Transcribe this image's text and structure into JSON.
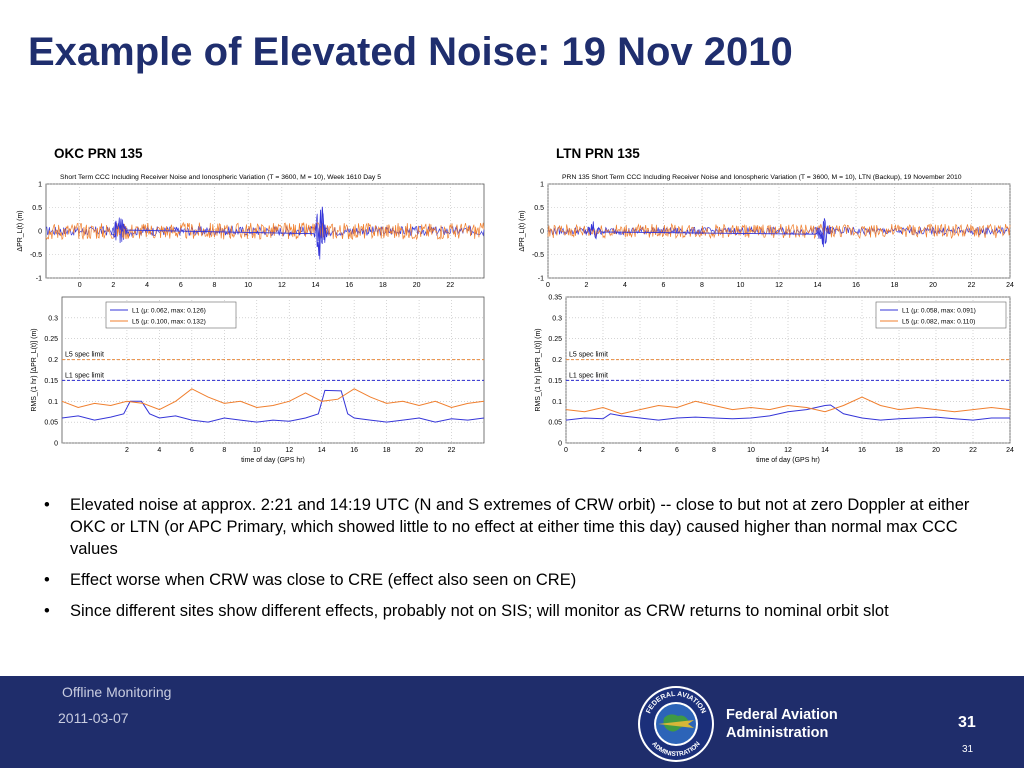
{
  "slide": {
    "title": "Example of Elevated Noise: 19 Nov 2010",
    "left_panel_label": "OKC PRN 135",
    "right_panel_label": "LTN PRN 135",
    "bullets": [
      "Elevated noise at approx. 2:21 and 14:19 UTC (N and S extremes of CRW orbit) -- close to but not at zero Doppler at either OKC or LTN (or APC Primary, which showed little to no effect at either time this day) caused higher than normal max CCC values",
      "Effect worse when CRW was close to CRE (effect also seen on CRE)",
      "Since different sites show different effects, probably not on SIS; will monitor as CRW returns to nominal orbit slot"
    ]
  },
  "footer": {
    "section": "Offline Monitoring",
    "date": "2011-03-07",
    "org_line1": "Federal Aviation",
    "org_line2": "Administration",
    "page_big": "31",
    "page_small": "31",
    "seal_top_text": "FEDERAL AVIATION",
    "seal_bottom_text": "ADMINISTRATION"
  },
  "colors": {
    "title": "#1f2e6e",
    "footer_bg": "#1f2d6b",
    "l1": "#3535d8",
    "l5": "#f07f2e",
    "l1_limit": "#2a2ad0",
    "l5_limit": "#e98a3c"
  },
  "chart_data": [
    {
      "id": "okc-top",
      "type": "line",
      "title": "Short Term CCC Including Receiver Noise and Ionospheric Variation (T = 3600, M = 10), Week 1610 Day 5",
      "ylabel": "ΔPR_L(t) (m)",
      "xlabel": "",
      "xlim": [
        -2,
        24
      ],
      "ylim": [
        -1,
        1
      ],
      "xticks": [
        0,
        2,
        4,
        6,
        8,
        10,
        12,
        14,
        16,
        18,
        20,
        22
      ],
      "yticks": [
        -1,
        -0.5,
        0,
        0.5,
        1
      ],
      "grid": true,
      "series": [
        {
          "name": "L1",
          "color": "#3535d8",
          "noise_amplitude": 0.1,
          "spikes": [
            {
              "x": 2.35,
              "amp": 0.45
            },
            {
              "x": 14.3,
              "amp": 0.7
            }
          ]
        },
        {
          "name": "L5",
          "color": "#f07f2e",
          "noise_amplitude": 0.18,
          "spikes": []
        }
      ]
    },
    {
      "id": "okc-bottom",
      "type": "line",
      "title": "",
      "ylabel": "RMS_(1 hr) [ΔPR_L(t)] (m)",
      "xlabel": "time of day (GPS hr)",
      "xlim": [
        -2,
        24
      ],
      "ylim": [
        0,
        0.35
      ],
      "xticks": [
        2,
        4,
        6,
        8,
        10,
        12,
        14,
        16,
        18,
        20,
        22
      ],
      "yticks": [
        0,
        0.05,
        0.1,
        0.15,
        0.2,
        0.25,
        0.3
      ],
      "grid": true,
      "legend": {
        "placement": "top-left",
        "entries": [
          "L1 (μ: 0.062, max: 0.126)",
          "L5 (μ: 0.100, max: 0.132)"
        ]
      },
      "annotations": [
        {
          "text": "L5 spec limit",
          "y": 0.2
        },
        {
          "text": "L1 spec limit",
          "y": 0.15
        }
      ],
      "spec_limits": {
        "L5": 0.2,
        "L1": 0.15
      },
      "series": [
        {
          "name": "L1",
          "color": "#3535d8",
          "x": [
            -2,
            -1,
            0,
            1,
            1.8,
            2.2,
            2.9,
            3.4,
            4,
            5,
            6,
            7,
            8,
            9,
            10,
            11,
            12,
            13,
            13.8,
            14.2,
            15.2,
            15.6,
            16,
            17,
            18,
            19,
            20,
            21,
            22,
            23,
            24
          ],
          "y": [
            0.06,
            0.065,
            0.055,
            0.062,
            0.07,
            0.1,
            0.1,
            0.07,
            0.06,
            0.065,
            0.055,
            0.05,
            0.06,
            0.055,
            0.05,
            0.055,
            0.052,
            0.06,
            0.07,
            0.126,
            0.125,
            0.07,
            0.06,
            0.055,
            0.05,
            0.055,
            0.06,
            0.05,
            0.058,
            0.055,
            0.06
          ]
        },
        {
          "name": "L5",
          "color": "#f07f2e",
          "x": [
            -2,
            -1,
            0,
            1,
            2,
            3,
            4,
            5,
            6,
            7,
            8,
            9,
            10,
            11,
            12,
            13,
            14,
            15,
            16,
            17,
            18,
            19,
            20,
            21,
            22,
            23,
            24
          ],
          "y": [
            0.1,
            0.085,
            0.095,
            0.09,
            0.1,
            0.095,
            0.08,
            0.1,
            0.13,
            0.11,
            0.095,
            0.1,
            0.085,
            0.09,
            0.1,
            0.12,
            0.1,
            0.105,
            0.13,
            0.11,
            0.095,
            0.1,
            0.09,
            0.1,
            0.085,
            0.095,
            0.1
          ]
        }
      ]
    },
    {
      "id": "ltn-top",
      "type": "line",
      "title": "PRN 135 Short Term CCC Including Receiver Noise and Ionospheric Variation (T = 3600, M = 10), LTN (Backup), 19 November 2010",
      "ylabel": "ΔPR_L(t) (m)",
      "xlabel": "",
      "xlim": [
        0,
        24
      ],
      "ylim": [
        -1,
        1
      ],
      "xticks": [
        0,
        2,
        4,
        6,
        8,
        10,
        12,
        14,
        16,
        18,
        20,
        22,
        24
      ],
      "yticks": [
        -1,
        -0.5,
        0,
        0.5,
        1
      ],
      "grid": true,
      "series": [
        {
          "name": "L1",
          "color": "#3535d8",
          "noise_amplitude": 0.08,
          "spikes": [
            {
              "x": 2.35,
              "amp": 0.25
            },
            {
              "x": 14.3,
              "amp": 0.35
            }
          ]
        },
        {
          "name": "L5",
          "color": "#f07f2e",
          "noise_amplitude": 0.15,
          "spikes": []
        }
      ]
    },
    {
      "id": "ltn-bottom",
      "type": "line",
      "title": "",
      "ylabel": "RMS_(1 hr) [ΔPR_L(t)] (m)",
      "xlabel": "time of day (GPS hr)",
      "xlim": [
        0,
        24
      ],
      "ylim": [
        0,
        0.35
      ],
      "xticks": [
        0,
        2,
        4,
        6,
        8,
        10,
        12,
        14,
        16,
        18,
        20,
        22,
        24
      ],
      "yticks": [
        0,
        0.05,
        0.1,
        0.15,
        0.2,
        0.25,
        0.3,
        0.35
      ],
      "grid": true,
      "legend": {
        "placement": "top-right",
        "entries": [
          "L1 (μ: 0.058, max: 0.091)",
          "L5 (μ: 0.082, max: 0.110)"
        ]
      },
      "annotations": [
        {
          "text": "L5 spec limit",
          "y": 0.2
        },
        {
          "text": "L1 spec limit",
          "y": 0.15
        }
      ],
      "spec_limits": {
        "L5": 0.2,
        "L1": 0.15
      },
      "series": [
        {
          "name": "L1",
          "color": "#3535d8",
          "x": [
            0,
            1,
            2,
            2.4,
            3,
            4,
            5,
            6,
            7,
            8,
            9,
            10,
            11,
            12,
            13,
            14,
            14.3,
            15,
            16,
            17,
            18,
            19,
            20,
            21,
            22,
            23,
            24
          ],
          "y": [
            0.055,
            0.06,
            0.058,
            0.07,
            0.065,
            0.06,
            0.055,
            0.06,
            0.062,
            0.06,
            0.058,
            0.06,
            0.065,
            0.075,
            0.08,
            0.09,
            0.091,
            0.07,
            0.06,
            0.055,
            0.058,
            0.06,
            0.062,
            0.058,
            0.055,
            0.06,
            0.06
          ]
        },
        {
          "name": "L5",
          "color": "#f07f2e",
          "x": [
            0,
            1,
            2,
            3,
            4,
            5,
            6,
            7,
            8,
            9,
            10,
            11,
            12,
            13,
            14,
            15,
            16,
            17,
            18,
            19,
            20,
            21,
            22,
            23,
            24
          ],
          "y": [
            0.08,
            0.075,
            0.085,
            0.07,
            0.08,
            0.09,
            0.085,
            0.1,
            0.09,
            0.08,
            0.085,
            0.08,
            0.09,
            0.085,
            0.075,
            0.09,
            0.11,
            0.09,
            0.08,
            0.085,
            0.08,
            0.075,
            0.08,
            0.085,
            0.08
          ]
        }
      ]
    }
  ]
}
